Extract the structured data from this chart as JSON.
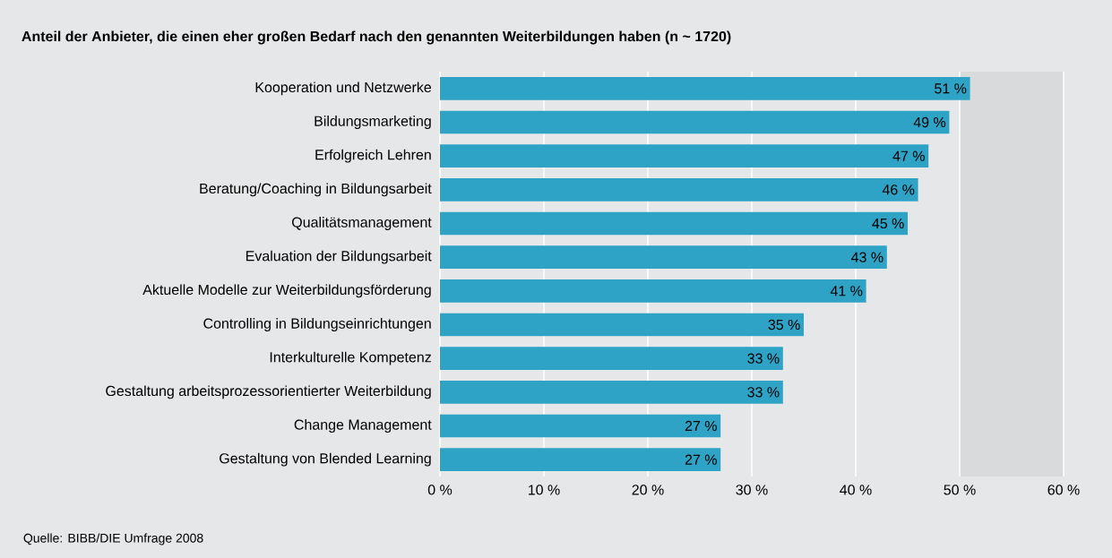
{
  "chart_data": {
    "type": "bar",
    "orientation": "horizontal",
    "title": "Anteil der Anbieter, die einen eher großen Bedarf nach den genannten Weiterbildungen haben (n ~ 1720)",
    "categories": [
      "Kooperation und Netzwerke",
      "Bildungsmarketing",
      "Erfolgreich Lehren",
      "Beratung/Coaching in Bildungsarbeit",
      "Qualitätsmanagement",
      "Evaluation der Bildungsarbeit",
      "Aktuelle Modelle zur Weiterbildungsförderung",
      "Controlling in Bildungseinrichtungen",
      "Interkulturelle Kompetenz",
      "Gestaltung arbeitsprozessorientierter Weiterbildung",
      "Change Management",
      "Gestaltung von Blended Learning"
    ],
    "values": [
      51,
      49,
      47,
      46,
      45,
      43,
      41,
      35,
      33,
      33,
      27,
      27
    ],
    "value_labels": [
      "51 %",
      "49 %",
      "47 %",
      "46 %",
      "45 %",
      "43 %",
      "41 %",
      "35 %",
      "33 %",
      "33 %",
      "27 %",
      "27 %"
    ],
    "color": "#2fa3c6",
    "xlim": [
      0,
      60
    ],
    "xticks": [
      {
        "value": 0,
        "label": "0 %"
      },
      {
        "value": 10,
        "label": "10 %"
      },
      {
        "value": 20,
        "label": "20 %"
      },
      {
        "value": 30,
        "label": "30 %"
      },
      {
        "value": 40,
        "label": "40 %"
      },
      {
        "value": 50,
        "label": "50 %"
      },
      {
        "value": 60,
        "label": "60 %"
      }
    ],
    "grid": "x",
    "bands": [
      {
        "axis": "x",
        "from": 50,
        "to": 60,
        "color": "#d8dadc"
      }
    ],
    "annotations": [
      "Quelle: BIBB/DIE Umfrage 2008"
    ]
  }
}
